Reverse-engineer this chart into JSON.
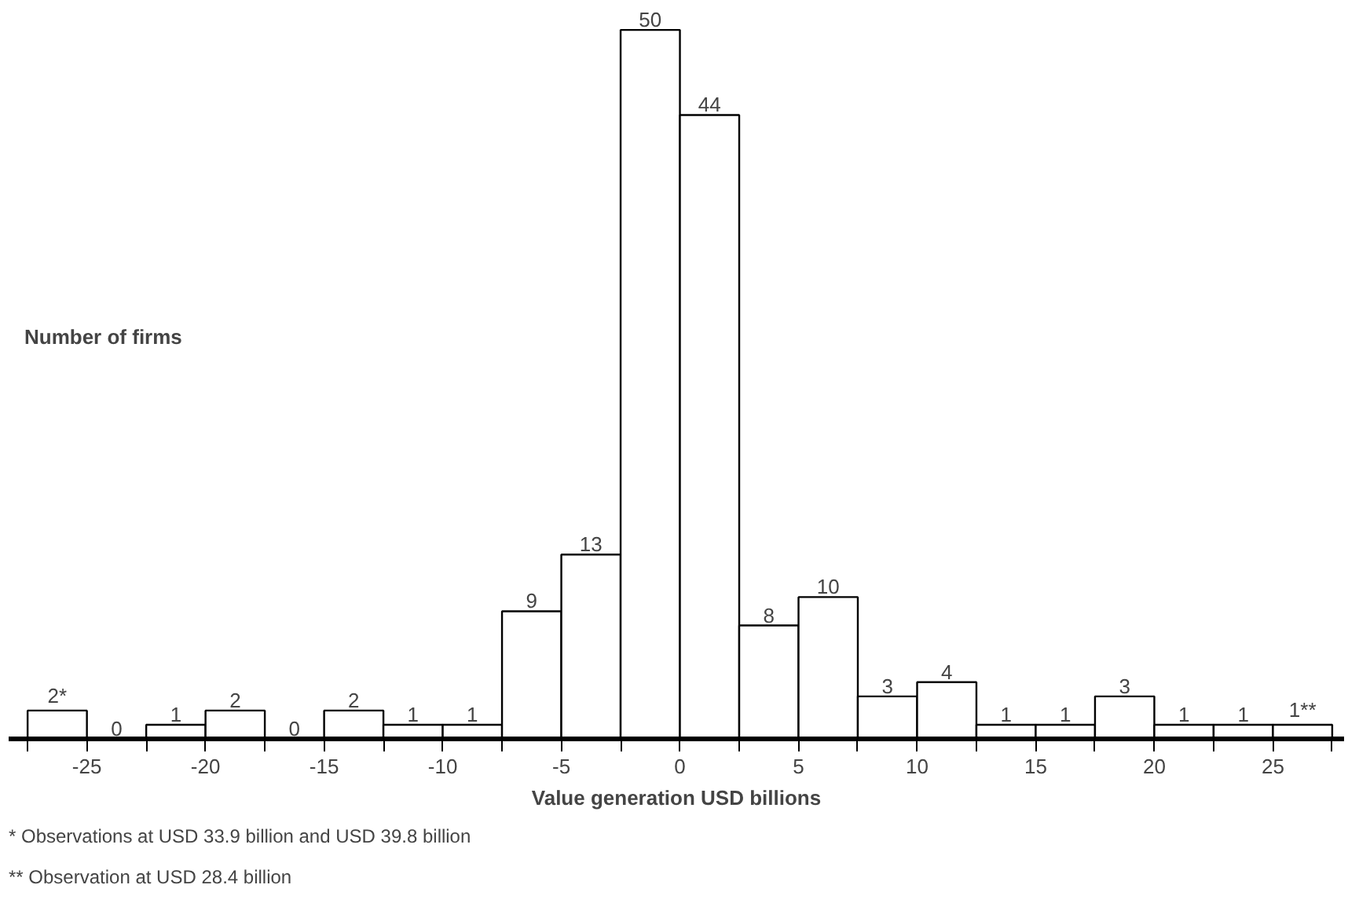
{
  "chart_data": {
    "type": "bar",
    "xlabel": "Value generation USD billions",
    "ylabel": "Number of firms",
    "x": [
      -26.25,
      -23.75,
      -21.25,
      -18.75,
      -16.25,
      -13.75,
      -11.25,
      -8.75,
      -6.25,
      -3.75,
      -1.25,
      1.25,
      3.75,
      6.25,
      8.75,
      11.25,
      13.75,
      16.25,
      18.75,
      21.25,
      23.75,
      26.25
    ],
    "values": [
      2,
      0,
      1,
      2,
      0,
      2,
      1,
      1,
      9,
      13,
      50,
      44,
      8,
      10,
      3,
      4,
      1,
      1,
      3,
      1,
      1,
      1
    ],
    "value_labels": [
      "2*",
      "0",
      "1",
      "2",
      "0",
      "2",
      "1",
      "1",
      "9",
      "13",
      "50",
      "44",
      "8",
      "10",
      "3",
      "4",
      "1",
      "1",
      "3",
      "1",
      "1",
      "1**"
    ],
    "color": "#ffffff",
    "xlim": [
      -28.3,
      28
    ],
    "xticks": [
      {
        "value": -27.5,
        "label": null
      },
      -25,
      {
        "value": -22.5,
        "label": null
      },
      -20,
      {
        "value": -17.5,
        "label": null
      },
      -15,
      {
        "value": -12.5,
        "label": null
      },
      -10,
      {
        "value": -7.5,
        "label": null
      },
      -5,
      {
        "value": -2.5,
        "label": null
      },
      0,
      {
        "value": 2.5,
        "label": null
      },
      5,
      {
        "value": 7.5,
        "label": null
      },
      10,
      {
        "value": 12.5,
        "label": null
      },
      15,
      {
        "value": 17.5,
        "label": null
      },
      20,
      {
        "value": 22.5,
        "label": null
      },
      25,
      {
        "value": 27.5,
        "label": null
      }
    ],
    "tick_labels": "x",
    "grid": false,
    "annotations": [
      "* Observations at USD 33.9 billion and USD 39.8 billion",
      "** Observation at USD 28.4 billion"
    ]
  }
}
